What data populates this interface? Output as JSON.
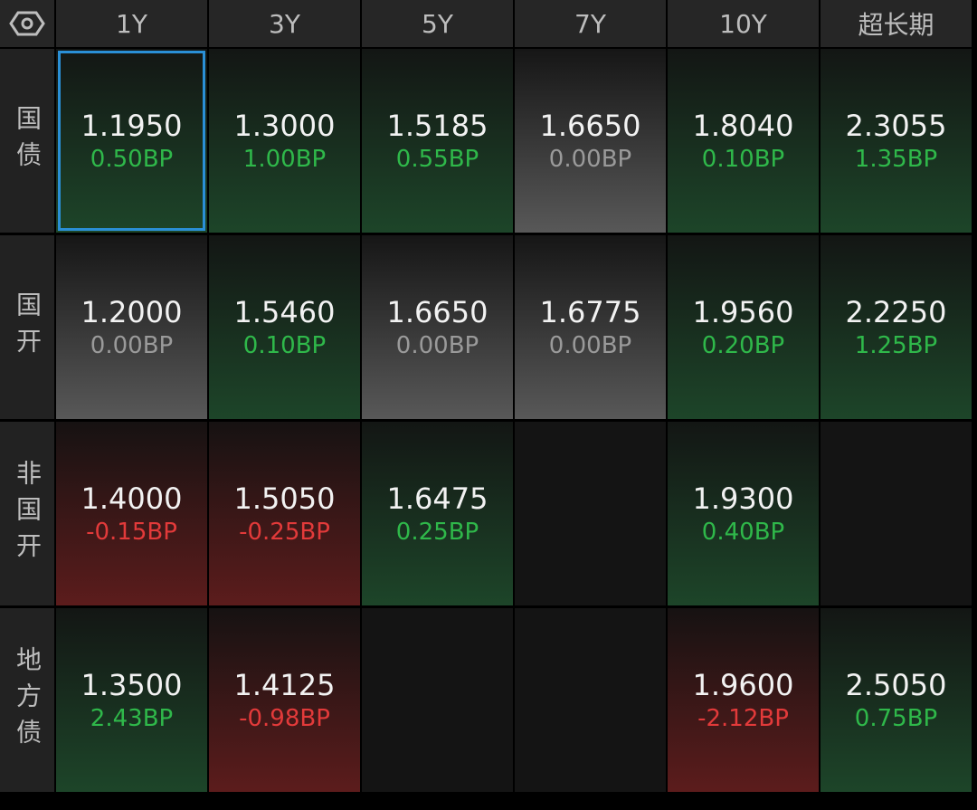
{
  "header": {
    "columns": [
      "1Y",
      "3Y",
      "5Y",
      "7Y",
      "10Y",
      "超长期"
    ]
  },
  "rows": [
    {
      "label": "国债",
      "cells": [
        {
          "yield": "1.1950",
          "change": "0.50BP"
        },
        {
          "yield": "1.3000",
          "change": "1.00BP"
        },
        {
          "yield": "1.5185",
          "change": "0.55BP"
        },
        {
          "yield": "1.6650",
          "change": "0.00BP"
        },
        {
          "yield": "1.8040",
          "change": "0.10BP"
        },
        {
          "yield": "2.3055",
          "change": "1.35BP"
        }
      ]
    },
    {
      "label": "国开",
      "cells": [
        {
          "yield": "1.2000",
          "change": "0.00BP"
        },
        {
          "yield": "1.5460",
          "change": "0.10BP"
        },
        {
          "yield": "1.6650",
          "change": "0.00BP"
        },
        {
          "yield": "1.6775",
          "change": "0.00BP"
        },
        {
          "yield": "1.9560",
          "change": "0.20BP"
        },
        {
          "yield": "2.2250",
          "change": "1.25BP"
        }
      ]
    },
    {
      "label": "非国开",
      "cells": [
        {
          "yield": "1.4000",
          "change": "-0.15BP"
        },
        {
          "yield": "1.5050",
          "change": "-0.25BP"
        },
        {
          "yield": "1.6475",
          "change": "0.25BP"
        },
        null,
        {
          "yield": "1.9300",
          "change": "0.40BP"
        },
        null
      ]
    },
    {
      "label": "地方债",
      "cells": [
        {
          "yield": "1.3500",
          "change": "2.43BP"
        },
        {
          "yield": "1.4125",
          "change": "-0.98BP"
        },
        null,
        null,
        {
          "yield": "1.9600",
          "change": "-2.12BP"
        },
        {
          "yield": "2.5050",
          "change": "0.75BP"
        }
      ]
    }
  ]
}
